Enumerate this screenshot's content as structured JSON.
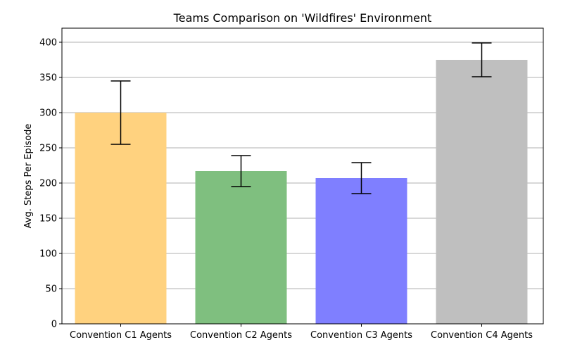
{
  "chart_data": {
    "type": "bar",
    "title": "Teams Comparison on 'Wildfires' Environment",
    "xlabel": "",
    "ylabel": "Avg. Steps Per Episode",
    "ylim": [
      0,
      420
    ],
    "yticks": [
      0,
      50,
      100,
      150,
      200,
      250,
      300,
      350,
      400
    ],
    "grid": "y",
    "categories": [
      "Convention C1 Agents",
      "Convention C2 Agents",
      "Convention C3 Agents",
      "Convention C4 Agents"
    ],
    "values": [
      300,
      217,
      207,
      375
    ],
    "errors": [
      45,
      22,
      22,
      24
    ],
    "colors": [
      "#ffd27f",
      "#7fbf7f",
      "#7f7fff",
      "#bfbfbf"
    ]
  }
}
